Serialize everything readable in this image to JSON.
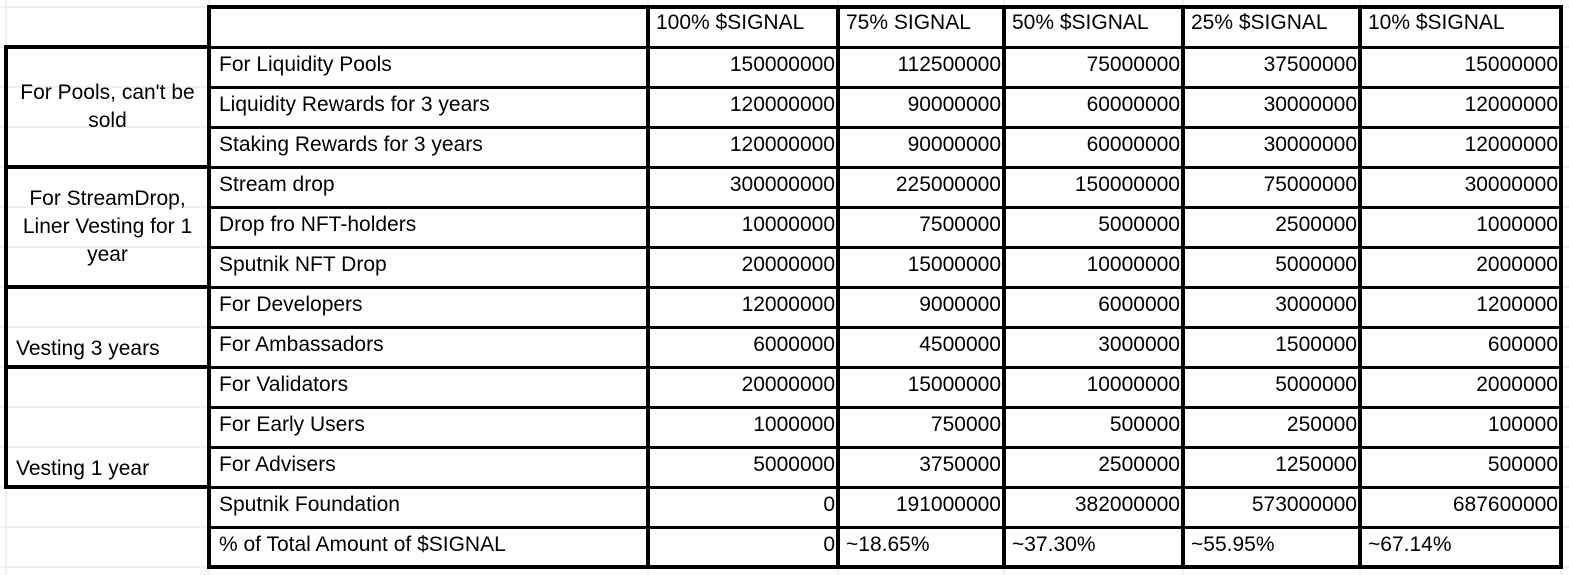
{
  "table": {
    "columns": [
      "100% $SIGNAL",
      "75% SIGNAL",
      "50% $SIGNAL",
      "25% $SIGNAL",
      "10% $SIGNAL"
    ],
    "groups": [
      {
        "label": "For Pools, can't be sold",
        "align": "center",
        "start": 0,
        "span": 3
      },
      {
        "label": "For StreamDrop, Liner Vesting for 1 year",
        "align": "center",
        "start": 3,
        "span": 3
      },
      {
        "label": "Vesting 3 years",
        "align": "bottomleft",
        "start": 6,
        "span": 2
      },
      {
        "label": "Vesting  1 year",
        "align": "bottomleft",
        "start": 8,
        "span": 3
      }
    ],
    "rows": [
      {
        "label": "For Liquidity Pools",
        "values": [
          "150000000",
          "112500000",
          "75000000",
          "37500000",
          "15000000"
        ]
      },
      {
        "label": "Liquidity Rewards for 3 years",
        "values": [
          "120000000",
          "90000000",
          "60000000",
          "30000000",
          "12000000"
        ]
      },
      {
        "label": "Staking Rewards for 3 years",
        "values": [
          "120000000",
          "90000000",
          "60000000",
          "30000000",
          "12000000"
        ]
      },
      {
        "label": "Stream drop",
        "values": [
          "300000000",
          "225000000",
          "150000000",
          "75000000",
          "30000000"
        ]
      },
      {
        "label": "Drop fro NFT-holders",
        "values": [
          "10000000",
          "7500000",
          "5000000",
          "2500000",
          "1000000"
        ]
      },
      {
        "label": "Sputnik NFT Drop",
        "values": [
          "20000000",
          "15000000",
          "10000000",
          "5000000",
          "2000000"
        ]
      },
      {
        "label": "For Developers",
        "values": [
          "12000000",
          "9000000",
          "6000000",
          "3000000",
          "1200000"
        ]
      },
      {
        "label": "For Ambassadors",
        "values": [
          "6000000",
          "4500000",
          "3000000",
          "1500000",
          "600000"
        ]
      },
      {
        "label": "For Validators",
        "values": [
          "20000000",
          "15000000",
          "10000000",
          "5000000",
          "2000000"
        ]
      },
      {
        "label": "For Early Users",
        "values": [
          "1000000",
          "750000",
          "500000",
          "250000",
          "100000"
        ]
      },
      {
        "label": "For Advisers",
        "values": [
          "5000000",
          "3750000",
          "2500000",
          "1250000",
          "500000"
        ]
      },
      {
        "label": "Sputnik Foundation",
        "values": [
          "0",
          "191000000",
          "382000000",
          "573000000",
          "687600000"
        ]
      },
      {
        "label": "% of Total Amount of $SIGNAL",
        "values": [
          "0",
          "~18.65%",
          "~37.30%",
          "~55.95%",
          "~67.14%"
        ]
      }
    ]
  },
  "colors": {
    "grid": "#e2e2e2",
    "border": "#000000",
    "text": "#000000",
    "background": "#ffffff"
  }
}
